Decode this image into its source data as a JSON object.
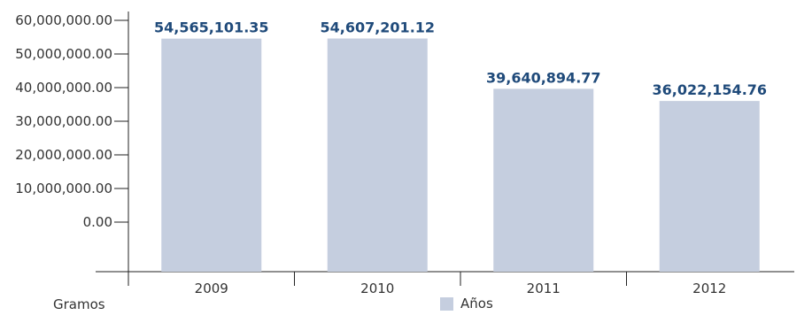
{
  "chart_data": {
    "type": "bar",
    "categories": [
      "2009",
      "2010",
      "2011",
      "2012"
    ],
    "series": [
      {
        "name": "Años",
        "values": [
          54565101.35,
          54607201.12,
          39640894.77,
          36022154.76
        ]
      }
    ],
    "data_labels": [
      "54,565,101.35",
      "54,607,201.12",
      "39,640,894.77",
      "36,022,154.76"
    ],
    "y_ticks": [
      "0.00",
      "10,000,000.00",
      "20,000,000.00",
      "30,000,000.00",
      "40,000,000.00",
      "50,000,000.00",
      "60,000,000.00"
    ],
    "y_tick_values": [
      0,
      10000000,
      20000000,
      30000000,
      40000000,
      50000000,
      60000000
    ],
    "ylabel": "Gramos",
    "legend_label": "Años",
    "legend_position": "bottom",
    "ylim": [
      0,
      60000000
    ],
    "grid": false,
    "bar_color": "#c5cedf",
    "label_color": "#1f4a7a"
  }
}
